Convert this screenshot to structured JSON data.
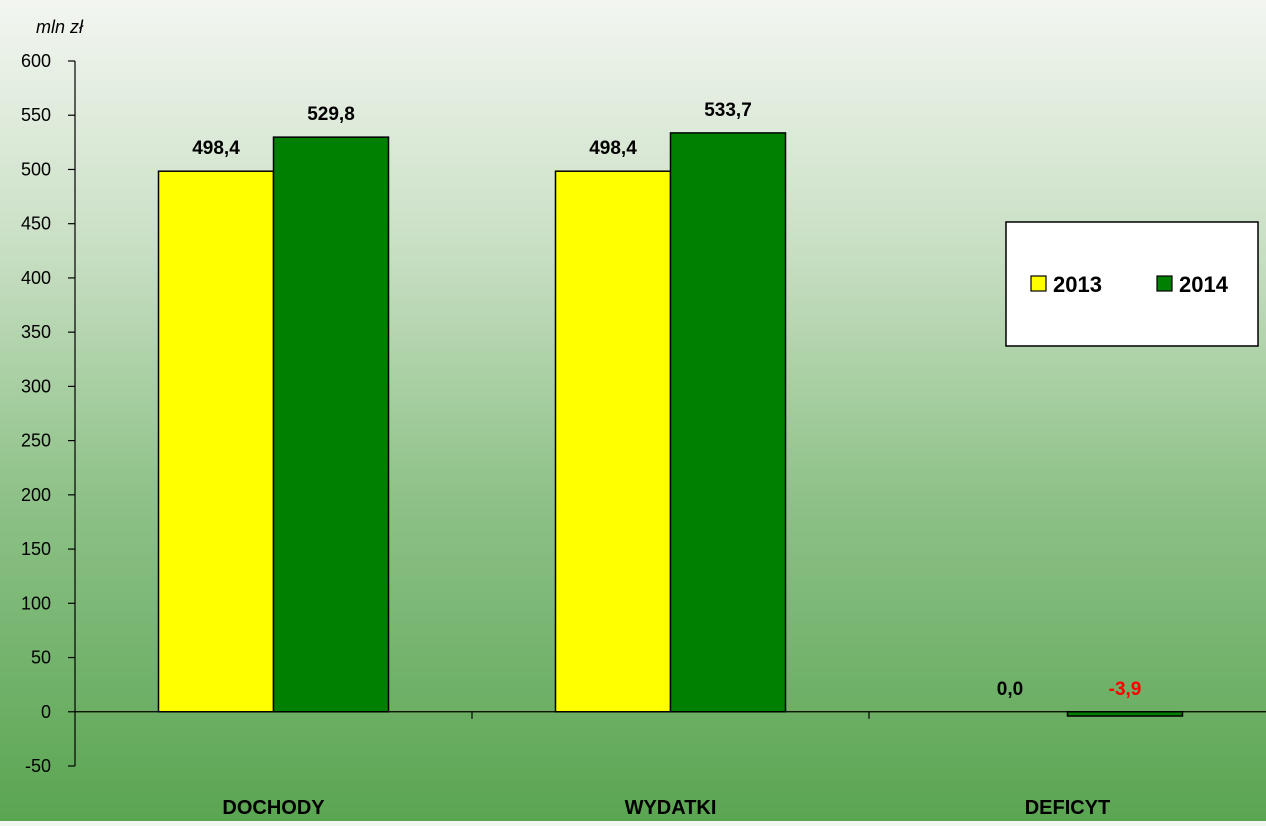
{
  "chart_data": {
    "type": "bar",
    "unit_label": "mln zł",
    "categories": [
      "DOCHODY",
      "WYDATKI",
      "DEFICYT"
    ],
    "series": [
      {
        "name": "2013",
        "values": [
          498.4,
          498.4,
          0.0
        ],
        "labels": [
          "498,4",
          "498,4",
          "0,0"
        ],
        "color": "#ffff00"
      },
      {
        "name": "2014",
        "values": [
          529.8,
          533.7,
          -3.9
        ],
        "labels": [
          "529,8",
          "533,7",
          "-3,9"
        ],
        "color": "#008000"
      }
    ],
    "label_colors": {
      "default": "#000000",
      "negative": "#ff0000"
    },
    "y_ticks": [
      "600",
      "550",
      "500",
      "450",
      "400",
      "350",
      "300",
      "250",
      "200",
      "150",
      "100",
      "50",
      "0",
      "-50"
    ],
    "ylim": [
      -50,
      600
    ],
    "grid": false,
    "legend_position": "right"
  }
}
